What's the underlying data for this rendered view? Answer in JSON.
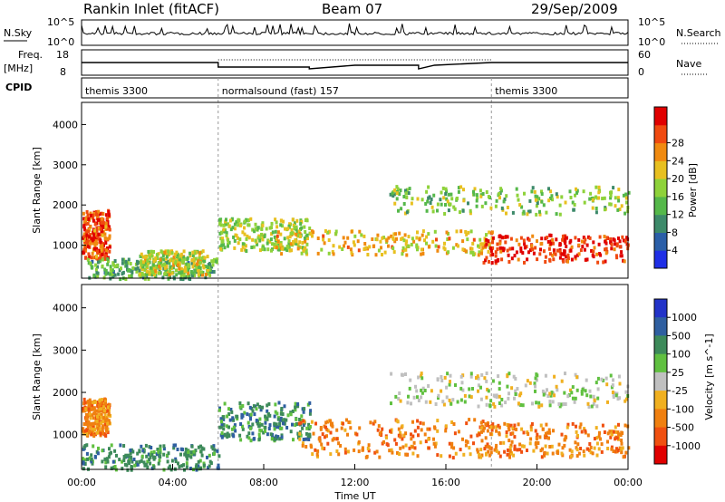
{
  "header": {
    "station": "Rankin Inlet (fitACF)",
    "beam": "Beam 07",
    "date": "29/Sep/2009"
  },
  "panels": {
    "nsky_label": "N.Sky",
    "nsky_ticks": [
      "10^5",
      "10^0"
    ],
    "nsearch_label": "N.Search",
    "nsearch_ticks": [
      "10^5",
      "10^0"
    ],
    "freq_label_top": "Freq.",
    "freq_label_unit": "[MHz]",
    "freq_ticks": [
      "18",
      "8"
    ],
    "nave_label": "Nave",
    "nave_ticks": [
      "60",
      "0"
    ],
    "cpid_label": "CPID",
    "cpid_segments": [
      {
        "name": "themis 3300",
        "start_h": 0,
        "end_h": 6
      },
      {
        "name": "normalsound (fast) 157",
        "start_h": 6,
        "end_h": 18
      },
      {
        "name": "themis 3300",
        "start_h": 18,
        "end_h": 24
      }
    ]
  },
  "chart_data": [
    {
      "type": "heatmap",
      "quantity": "power",
      "ylabel": "Slant Range [km]",
      "ylim": [
        180,
        4550
      ],
      "xlim_hours": [
        0,
        24
      ],
      "yticks": [
        1000,
        2000,
        3000,
        4000
      ],
      "colorbar_label": "Power [dB]",
      "colorbar_ticks": [
        "4",
        "8",
        "12",
        "16",
        "20",
        "24",
        "28"
      ],
      "colors": [
        "#1f2fe6",
        "#2b5fa8",
        "#3d8a6a",
        "#55b84a",
        "#8ed23a",
        "#e8c020",
        "#f08a10",
        "#f04a10",
        "#e00000"
      ],
      "echo_regions": [
        {
          "t": [
            0.0,
            1.2
          ],
          "r": [
            700,
            1900
          ],
          "level": 0.85
        },
        {
          "t": [
            0.2,
            6.0
          ],
          "r": [
            200,
            700
          ],
          "level": 0.35
        },
        {
          "t": [
            2.5,
            5.5
          ],
          "r": [
            300,
            900
          ],
          "level": 0.55
        },
        {
          "t": [
            6.0,
            10.0
          ],
          "r": [
            900,
            1700
          ],
          "level": 0.5
        },
        {
          "t": [
            8.5,
            18.0
          ],
          "r": [
            800,
            1400
          ],
          "level": 0.65
        },
        {
          "t": [
            13.5,
            24.0
          ],
          "r": [
            1800,
            2500
          ],
          "level": 0.45
        },
        {
          "t": [
            17.5,
            24.0
          ],
          "r": [
            600,
            1300
          ],
          "level": 0.95
        }
      ]
    },
    {
      "type": "heatmap",
      "quantity": "velocity",
      "ylabel": "Slant Range [km]",
      "xlabel": "Time UT",
      "ylim": [
        180,
        4550
      ],
      "xlim_hours": [
        0,
        24
      ],
      "yticks": [
        1000,
        2000,
        3000,
        4000
      ],
      "xticks": [
        "00:00",
        "04:00",
        "08:00",
        "12:00",
        "16:00",
        "20:00",
        "00:00"
      ],
      "colorbar_label": "Velocity [m s^-1]",
      "colorbar_ticks": [
        "1000",
        "500",
        "100",
        "25",
        "-25",
        "-100",
        "-500",
        "-1000"
      ],
      "colors": [
        "#2233c8",
        "#2f5fa0",
        "#3d8a5a",
        "#60c040",
        "#c0c0c0",
        "#f0b020",
        "#f08010",
        "#f05010",
        "#e00000"
      ],
      "echo_regions": [
        {
          "t": [
            0.0,
            1.2
          ],
          "r": [
            1000,
            1900
          ],
          "level": "orange"
        },
        {
          "t": [
            0.0,
            6.0
          ],
          "r": [
            200,
            800
          ],
          "level": "green"
        },
        {
          "t": [
            6.0,
            10.0
          ],
          "r": [
            900,
            1800
          ],
          "level": "green"
        },
        {
          "t": [
            9.5,
            18.0
          ],
          "r": [
            500,
            1400
          ],
          "level": "orange"
        },
        {
          "t": [
            13.5,
            24.0
          ],
          "r": [
            1700,
            2500
          ],
          "level": "grey"
        },
        {
          "t": [
            17.5,
            24.0
          ],
          "r": [
            500,
            1300
          ],
          "level": "orange"
        }
      ]
    }
  ]
}
